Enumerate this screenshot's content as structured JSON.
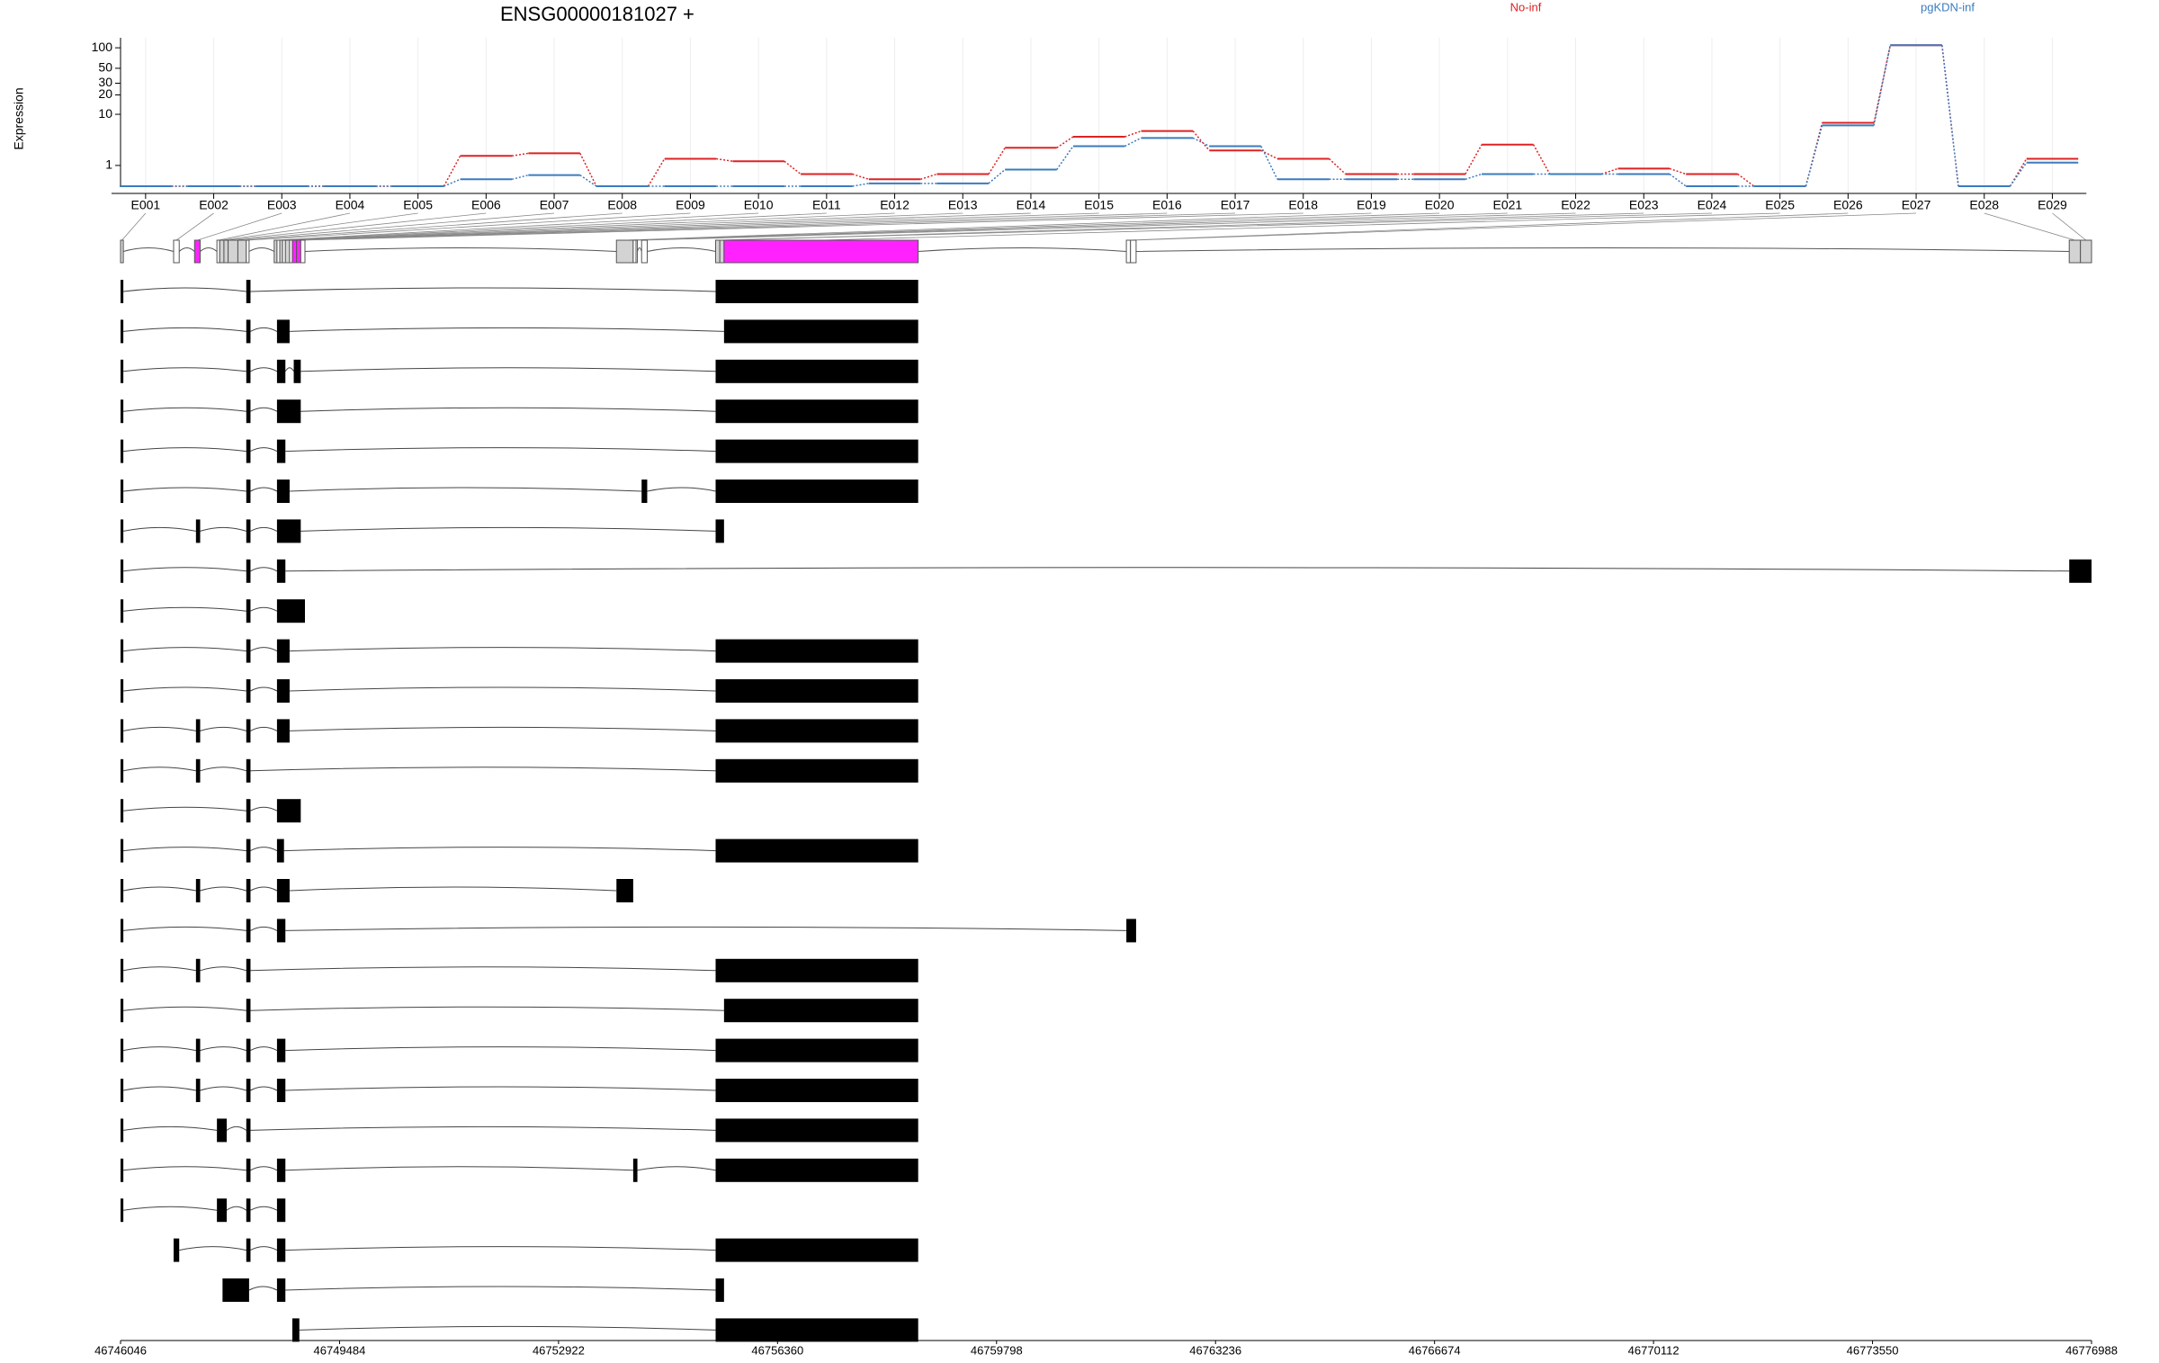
{
  "chart_data": {
    "type": "line",
    "title": "ENSG00000181027 +",
    "ylabel": "Expression",
    "yscale": "log1p",
    "ylim": [
      0,
      140
    ],
    "yticks": [
      1,
      10,
      20,
      30,
      50,
      100
    ],
    "grid": true,
    "categories": [
      "E001",
      "E002",
      "E003",
      "E004",
      "E005",
      "E006",
      "E007",
      "E008",
      "E009",
      "E010",
      "E011",
      "E012",
      "E013",
      "E014",
      "E015",
      "E016",
      "E017",
      "E018",
      "E019",
      "E020",
      "E021",
      "E022",
      "E023",
      "E024",
      "E025",
      "E026",
      "E027",
      "E028",
      "E029"
    ],
    "series": [
      {
        "name": "No-inf",
        "color": "#dd2222",
        "values": [
          0,
          0,
          0,
          0,
          0,
          1.75,
          2.0,
          0,
          1.5,
          1.3,
          0.5,
          0.26,
          0.5,
          2.6,
          4.2,
          5.3,
          2.3,
          1.5,
          0.5,
          0.5,
          3.0,
          0.5,
          0.8,
          0.5,
          0,
          7.3,
          109,
          0,
          1.5
        ]
      },
      {
        "name": "pgKDN-inf",
        "color": "#3b7bbf",
        "values": [
          0,
          0,
          0,
          0,
          0,
          0.26,
          0.45,
          0,
          0,
          0,
          0,
          0.1,
          0.1,
          0.74,
          2.8,
          4,
          2.8,
          0.26,
          0.26,
          0.26,
          0.5,
          0.5,
          0.5,
          0,
          0,
          6.6,
          109,
          0,
          1.2
        ]
      }
    ],
    "gene_model": {
      "xlim": [
        46746046,
        46776988
      ],
      "xticks": [
        46746046,
        46749484,
        46752922,
        46756360,
        46759798,
        46763236,
        46766674,
        46770112,
        46773550,
        46776988
      ],
      "exon_bins": [
        [
          46746046,
          46746090
        ],
        [
          46746879,
          46746967
        ],
        [
          46747208,
          46747296
        ],
        [
          46747559,
          46747603
        ],
        [
          46747603,
          46747669
        ],
        [
          46747669,
          46747735
        ],
        [
          46747735,
          46747888
        ],
        [
          46747888,
          46748020
        ],
        [
          46748020,
          46748064
        ],
        [
          46748458,
          46748502
        ],
        [
          46748502,
          46748546
        ],
        [
          46748546,
          46748590
        ],
        [
          46748590,
          46748634
        ],
        [
          46748634,
          46748700
        ],
        [
          46748700,
          46748743
        ],
        [
          46748743,
          46748809
        ],
        [
          46748809,
          46748875
        ],
        [
          46748875,
          46748941
        ],
        [
          46753831,
          46754094
        ],
        [
          46754094,
          46754138
        ],
        [
          46754138,
          46754160
        ],
        [
          46754226,
          46754314
        ],
        [
          46755388,
          46755454
        ],
        [
          46755454,
          46755520
        ],
        [
          46755520,
          46758568
        ],
        [
          46761836,
          46761901
        ],
        [
          46761901,
          46761989
        ],
        [
          46776638,
          46776814
        ],
        [
          46776814,
          46776988
        ]
      ],
      "exon_bin_colors": [
        "#d3d3d3",
        "#ffffff",
        "#ff22ff",
        "#ffffff",
        "#d3d3d3",
        "#d3d3d3",
        "#d3d3d3",
        "#d3d3d3",
        "#ffffff",
        "#d3d3d3",
        "#ffffff",
        "#d3d3d3",
        "#ffffff",
        "#d3d3d3",
        "#ffffff",
        "#ff22ff",
        "#ff22ff",
        "#ffffff",
        "#d3d3d3",
        "#ffffff",
        "#ffffff",
        "#ffffff",
        "#d3d3d3",
        "#d3d3d3",
        "#ff22ff",
        "#ffffff",
        "#ffffff",
        "#d3d3d3",
        "#d3d3d3"
      ],
      "transcripts": [
        [
          [
            46746046,
            46746090
          ],
          [
            46748020,
            46748086
          ],
          [
            46755388,
            46758568
          ]
        ],
        [
          [
            46746046,
            46746090
          ],
          [
            46748020,
            46748086
          ],
          [
            46748502,
            46748700
          ],
          [
            46755520,
            46758568
          ]
        ],
        [
          [
            46746046,
            46746090
          ],
          [
            46748020,
            46748086
          ],
          [
            46748502,
            46748634
          ],
          [
            46748765,
            46748875
          ],
          [
            46755388,
            46758568
          ]
        ],
        [
          [
            46746046,
            46746090
          ],
          [
            46748020,
            46748086
          ],
          [
            46748502,
            46748875
          ],
          [
            46755388,
            46758568
          ]
        ],
        [
          [
            46746046,
            46746090
          ],
          [
            46748020,
            46748086
          ],
          [
            46748502,
            46748634
          ],
          [
            46755388,
            46758568
          ]
        ],
        [
          [
            46746046,
            46746090
          ],
          [
            46748020,
            46748086
          ],
          [
            46748502,
            46748700
          ],
          [
            46754226,
            46754314
          ],
          [
            46755388,
            46758568
          ]
        ],
        [
          [
            46746046,
            46746090
          ],
          [
            46747230,
            46747296
          ],
          [
            46748020,
            46748086
          ],
          [
            46748502,
            46748875
          ],
          [
            46755388,
            46755520
          ]
        ],
        [
          [
            46746046,
            46746090
          ],
          [
            46748020,
            46748086
          ],
          [
            46748502,
            46748634
          ],
          [
            46776638,
            46776988
          ]
        ],
        [
          [
            46746046,
            46746090
          ],
          [
            46748020,
            46748086
          ],
          [
            46748502,
            46748941
          ]
        ],
        [
          [
            46746046,
            46746090
          ],
          [
            46748020,
            46748086
          ],
          [
            46748502,
            46748700
          ],
          [
            46755388,
            46758568
          ]
        ],
        [
          [
            46746046,
            46746090
          ],
          [
            46748020,
            46748086
          ],
          [
            46748502,
            46748700
          ],
          [
            46755388,
            46758568
          ]
        ],
        [
          [
            46746046,
            46746090
          ],
          [
            46747230,
            46747296
          ],
          [
            46748020,
            46748086
          ],
          [
            46748502,
            46748700
          ],
          [
            46755388,
            46758568
          ]
        ],
        [
          [
            46746046,
            46746090
          ],
          [
            46747230,
            46747296
          ],
          [
            46748020,
            46748086
          ],
          [
            46755388,
            46758568
          ]
        ],
        [
          [
            46746046,
            46746090
          ],
          [
            46748020,
            46748086
          ],
          [
            46748502,
            46748875
          ]
        ],
        [
          [
            46746046,
            46746090
          ],
          [
            46748020,
            46748086
          ],
          [
            46748502,
            46748612
          ],
          [
            46755388,
            46758568
          ]
        ],
        [
          [
            46746046,
            46746090
          ],
          [
            46747230,
            46747296
          ],
          [
            46748020,
            46748086
          ],
          [
            46748502,
            46748700
          ],
          [
            46753831,
            46754094
          ]
        ],
        [
          [
            46746046,
            46746090
          ],
          [
            46748020,
            46748086
          ],
          [
            46748502,
            46748634
          ],
          [
            46761836,
            46761989
          ]
        ],
        [
          [
            46746046,
            46746090
          ],
          [
            46747230,
            46747296
          ],
          [
            46748020,
            46748086
          ],
          [
            46755388,
            46758568
          ]
        ],
        [
          [
            46746046,
            46746090
          ],
          [
            46748020,
            46748086
          ],
          [
            46755520,
            46758568
          ]
        ],
        [
          [
            46746046,
            46746090
          ],
          [
            46747230,
            46747296
          ],
          [
            46748020,
            46748086
          ],
          [
            46748502,
            46748634
          ],
          [
            46755388,
            46758568
          ]
        ],
        [
          [
            46746046,
            46746090
          ],
          [
            46747230,
            46747296
          ],
          [
            46748020,
            46748086
          ],
          [
            46748502,
            46748634
          ],
          [
            46755388,
            46758568
          ]
        ],
        [
          [
            46746046,
            46746090
          ],
          [
            46747559,
            46747713
          ],
          [
            46748020,
            46748086
          ],
          [
            46755388,
            46758568
          ]
        ],
        [
          [
            46746046,
            46746090
          ],
          [
            46748020,
            46748086
          ],
          [
            46748502,
            46748634
          ],
          [
            46754094,
            46754160
          ],
          [
            46755388,
            46758568
          ]
        ],
        [
          [
            46746046,
            46746090
          ],
          [
            46747559,
            46747713
          ],
          [
            46748020,
            46748086
          ],
          [
            46748502,
            46748634
          ]
        ],
        [
          [
            46746879,
            46746967
          ],
          [
            46748020,
            46748086
          ],
          [
            46748502,
            46748634
          ],
          [
            46755388,
            46758568
          ]
        ],
        [
          [
            46747647,
            46748064
          ],
          [
            46748502,
            46748634
          ],
          [
            46755388,
            46755520
          ]
        ],
        [
          [
            46748743,
            46748853
          ],
          [
            46755388,
            46758568
          ]
        ]
      ]
    }
  }
}
